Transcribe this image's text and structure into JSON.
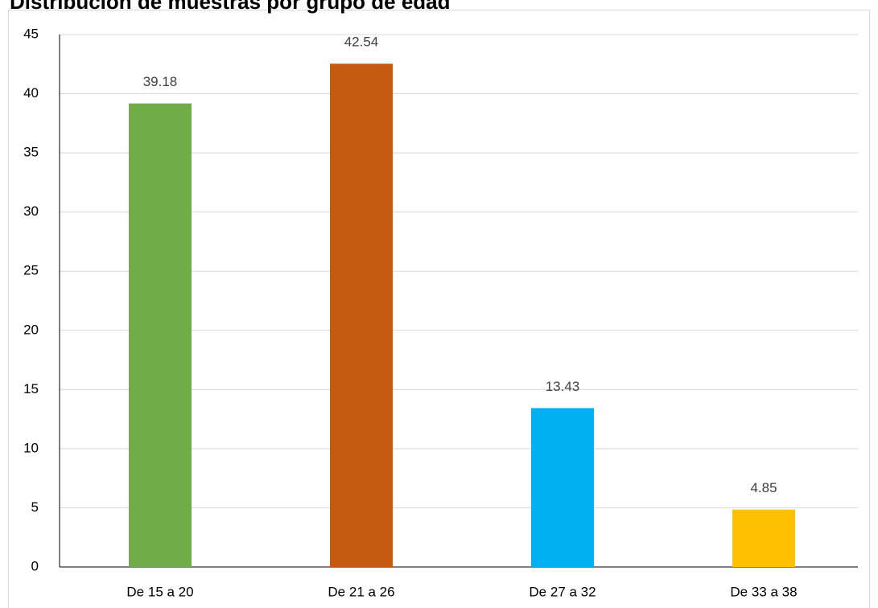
{
  "chart_data": {
    "type": "bar",
    "title": "Distribución de muestras por grupo de edad",
    "categories": [
      "De 15 a 20",
      "De 21 a 26",
      "De 27 a 32",
      "De 33 a 38"
    ],
    "values": [
      39.18,
      42.54,
      13.43,
      4.85
    ],
    "colors": [
      "#70ad47",
      "#c55a11",
      "#00b0f0",
      "#ffc000"
    ],
    "ylim": [
      0,
      45
    ],
    "yticks": [
      0,
      5,
      10,
      15,
      20,
      25,
      30,
      35,
      40,
      45
    ],
    "grid": true
  }
}
